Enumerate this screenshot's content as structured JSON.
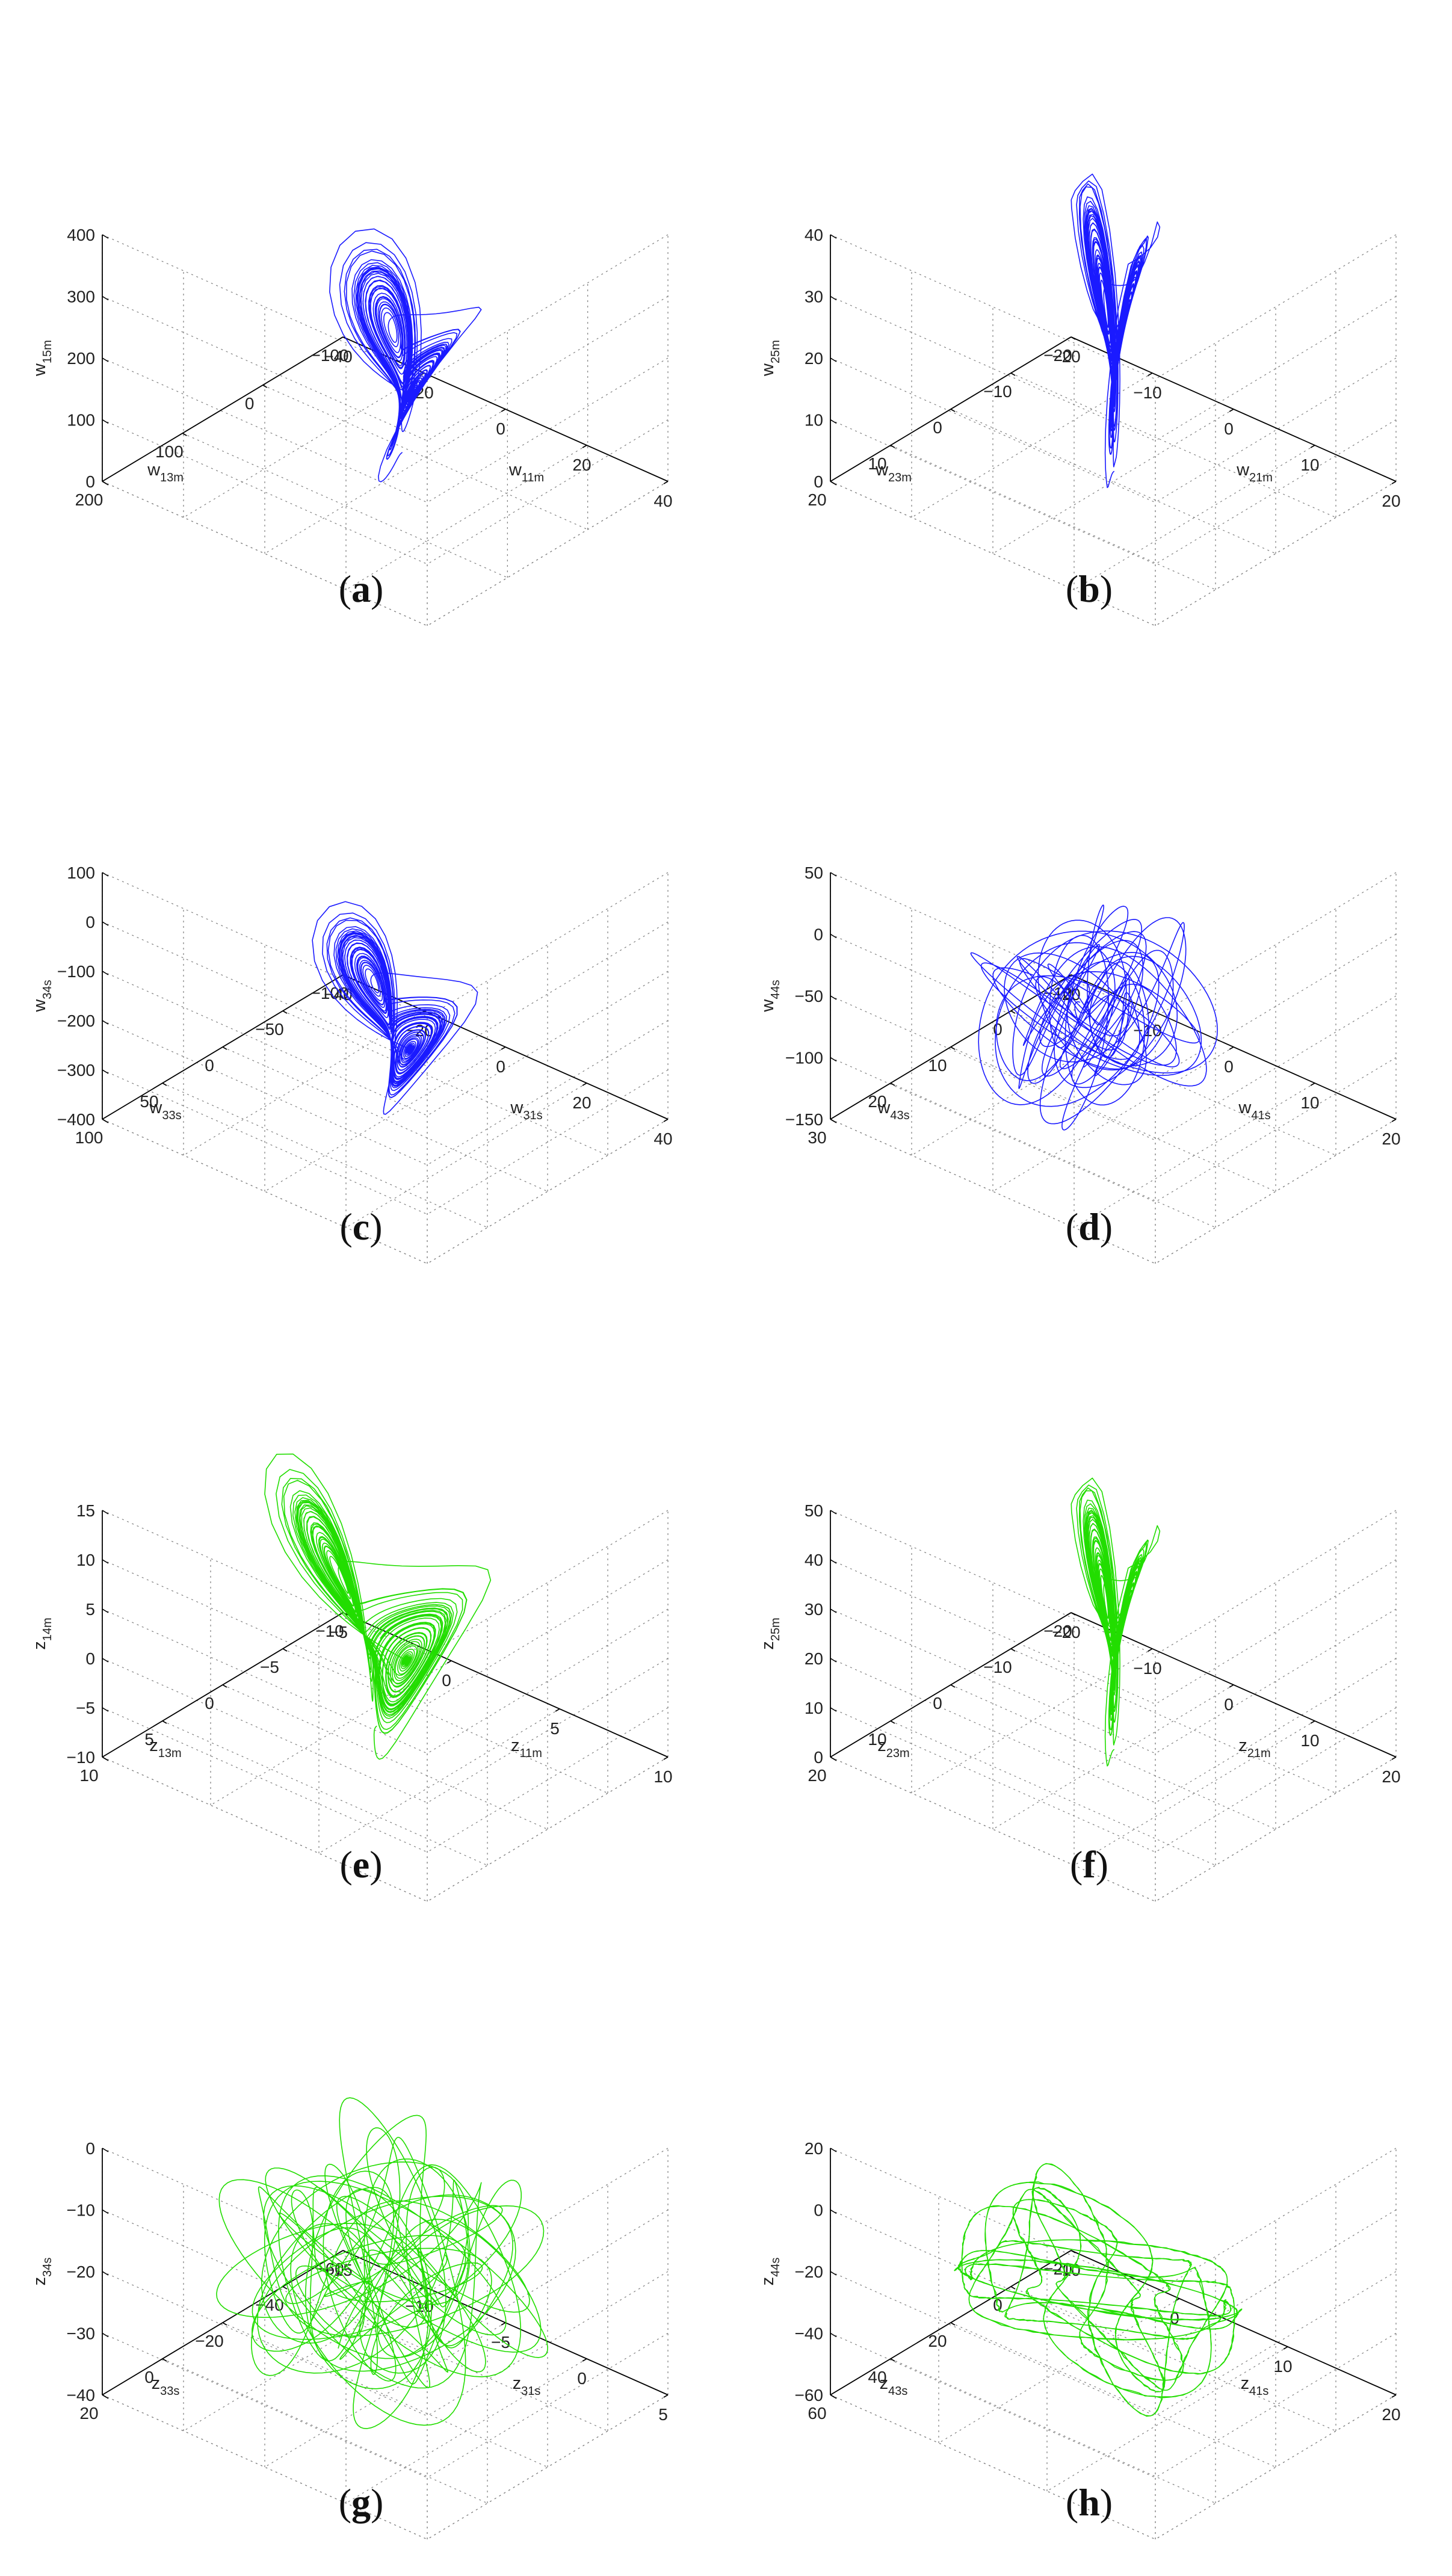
{
  "chart_data": [
    {
      "type": "line3d",
      "panel": "a",
      "caption": "a",
      "xlabel": {
        "base": "w",
        "sub": "11m"
      },
      "ylabel": {
        "base": "w",
        "sub": "13m"
      },
      "zlabel": {
        "base": "w",
        "sub": "15m"
      },
      "xticks": [
        "−40",
        "−20",
        "0",
        "20",
        "40"
      ],
      "yticks": [
        "−100",
        "0",
        "100",
        "200"
      ],
      "zticks": [
        "0",
        "100",
        "200",
        "300",
        "400"
      ],
      "xlim": [
        -40,
        40
      ],
      "ylim": [
        -100,
        200
      ],
      "zlim": [
        0,
        400
      ],
      "color": "#1a1aff",
      "trajectory": {
        "kind": "lorenz",
        "x_range": [
          -18,
          26
        ],
        "y_range": [
          -60,
          160
        ],
        "z_range": [
          60,
          330
        ]
      }
    },
    {
      "type": "line3d",
      "panel": "b",
      "caption": "b",
      "xlabel": {
        "base": "w",
        "sub": "21m"
      },
      "ylabel": {
        "base": "w",
        "sub": "23m"
      },
      "zlabel": {
        "base": "w",
        "sub": "25m"
      },
      "xticks": [
        "−20",
        "−10",
        "0",
        "10",
        "20"
      ],
      "yticks": [
        "−20",
        "−10",
        "0",
        "10",
        "20"
      ],
      "zticks": [
        "0",
        "10",
        "20",
        "30",
        "40"
      ],
      "xlim": [
        -20,
        20
      ],
      "ylim": [
        -20,
        20
      ],
      "zlim": [
        0,
        40
      ],
      "color": "#1a1aff",
      "trajectory": {
        "kind": "butterfly",
        "x_range": [
          -12,
          12
        ],
        "y_range": [
          -14,
          14
        ],
        "z_range": [
          2,
          43
        ]
      }
    },
    {
      "type": "line3d",
      "panel": "c",
      "caption": "c",
      "xlabel": {
        "base": "w",
        "sub": "31s"
      },
      "ylabel": {
        "base": "w",
        "sub": "33s"
      },
      "zlabel": {
        "base": "w",
        "sub": "34s"
      },
      "xticks": [
        "−40",
        "−20",
        "0",
        "20",
        "40"
      ],
      "yticks": [
        "−100",
        "−50",
        "0",
        "50",
        "100"
      ],
      "zticks": [
        "−400",
        "−300",
        "−200",
        "−100",
        "0",
        "100"
      ],
      "xlim": [
        -40,
        40
      ],
      "ylim": [
        -100,
        100
      ],
      "zlim": [
        -400,
        100
      ],
      "color": "#1a1aff",
      "trajectory": {
        "kind": "lorenz",
        "x_range": [
          -22,
          28
        ],
        "y_range": [
          -60,
          70
        ],
        "z_range": [
          -290,
          -70
        ]
      }
    },
    {
      "type": "line3d",
      "panel": "d",
      "caption": "d",
      "xlabel": {
        "base": "w",
        "sub": "41s"
      },
      "ylabel": {
        "base": "w",
        "sub": "43s"
      },
      "zlabel": {
        "base": "w",
        "sub": "44s"
      },
      "xticks": [
        "−20",
        "−10",
        "0",
        "10",
        "20"
      ],
      "yticks": [
        "−10",
        "0",
        "10",
        "20",
        "30"
      ],
      "zticks": [
        "−150",
        "−100",
        "−50",
        "0",
        "50"
      ],
      "xlim": [
        -20,
        20
      ],
      "ylim": [
        -10,
        30
      ],
      "zlim": [
        -150,
        50
      ],
      "color": "#1a1aff",
      "trajectory": {
        "kind": "blob",
        "x_range": [
          -10,
          8
        ],
        "y_range": [
          0,
          24
        ],
        "z_range": [
          -125,
          5
        ]
      }
    },
    {
      "type": "line3d",
      "panel": "e",
      "caption": "e",
      "xlabel": {
        "base": "z",
        "sub": "11m"
      },
      "ylabel": {
        "base": "z",
        "sub": "13m"
      },
      "zlabel": {
        "base": "z",
        "sub": "14m"
      },
      "xticks": [
        "−5",
        "0",
        "5",
        "10"
      ],
      "yticks": [
        "−10",
        "−5",
        "0",
        "5",
        "10"
      ],
      "zticks": [
        "−10",
        "−5",
        "0",
        "5",
        "10",
        "15"
      ],
      "xlim": [
        -5,
        10
      ],
      "ylim": [
        -10,
        10
      ],
      "zlim": [
        -10,
        15
      ],
      "color": "#22dd00",
      "trajectory": {
        "kind": "lorenz",
        "x_range": [
          -4,
          9
        ],
        "y_range": [
          -6,
          8
        ],
        "z_range": [
          -6,
          14
        ]
      }
    },
    {
      "type": "line3d",
      "panel": "f",
      "caption": "f",
      "xlabel": {
        "base": "z",
        "sub": "21m"
      },
      "ylabel": {
        "base": "z",
        "sub": "23m"
      },
      "zlabel": {
        "base": "z",
        "sub": "25m"
      },
      "xticks": [
        "−20",
        "−10",
        "0",
        "10",
        "20"
      ],
      "yticks": [
        "−20",
        "−10",
        "0",
        "10",
        "20"
      ],
      "zticks": [
        "0",
        "10",
        "20",
        "30",
        "40",
        "50"
      ],
      "xlim": [
        -20,
        20
      ],
      "ylim": [
        -20,
        20
      ],
      "zlim": [
        0,
        50
      ],
      "color": "#22dd00",
      "trajectory": {
        "kind": "butterfly",
        "x_range": [
          -12,
          12
        ],
        "y_range": [
          -14,
          14
        ],
        "z_range": [
          2,
          48
        ]
      }
    },
    {
      "type": "line3d",
      "panel": "g",
      "caption": "g",
      "xlabel": {
        "base": "z",
        "sub": "31s"
      },
      "ylabel": {
        "base": "z",
        "sub": "33s"
      },
      "zlabel": {
        "base": "z",
        "sub": "34s"
      },
      "xticks": [
        "−15",
        "−10",
        "−5",
        "0",
        "5"
      ],
      "yticks": [
        "−60",
        "−40",
        "−20",
        "0",
        "20"
      ],
      "zticks": [
        "−40",
        "−30",
        "−20",
        "−10",
        "0"
      ],
      "xlim": [
        -15,
        5
      ],
      "ylim": [
        -60,
        20
      ],
      "zlim": [
        -40,
        0
      ],
      "color": "#22dd00",
      "trajectory": {
        "kind": "blob",
        "x_range": [
          -12,
          2
        ],
        "y_range": [
          -50,
          10
        ],
        "z_range": [
          -38,
          -2
        ]
      }
    },
    {
      "type": "line3d",
      "panel": "h",
      "caption": "h",
      "xlabel": {
        "base": "z",
        "sub": "41s"
      },
      "ylabel": {
        "base": "z",
        "sub": "43s"
      },
      "zlabel": {
        "base": "z",
        "sub": "44s"
      },
      "xticks": [
        "−10",
        "0",
        "10",
        "20"
      ],
      "yticks": [
        "−20",
        "0",
        "20",
        "40",
        "60"
      ],
      "zticks": [
        "−60",
        "−40",
        "−20",
        "0",
        "20"
      ],
      "xlim": [
        -10,
        20
      ],
      "ylim": [
        -20,
        60
      ],
      "zlim": [
        -60,
        20
      ],
      "color": "#22dd00",
      "trajectory": {
        "kind": "wide",
        "x_range": [
          -6,
          16
        ],
        "y_range": [
          0,
          50
        ],
        "z_range": [
          -45,
          -5
        ]
      }
    }
  ]
}
